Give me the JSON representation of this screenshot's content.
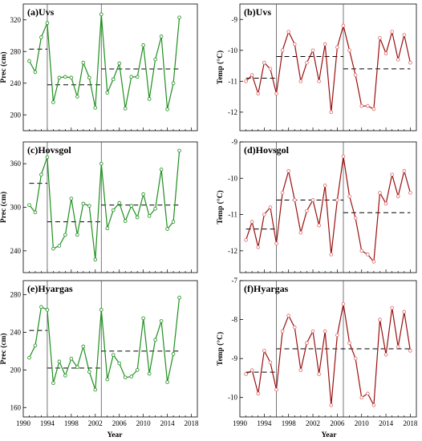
{
  "figure": {
    "xlabel_left": "Year",
    "xlabel_right": "Year"
  },
  "colors": {
    "precip": "#1f8f1f",
    "temp": "#9a0f0f",
    "temp_marker": "#e06a6a",
    "mean_line": "#000000",
    "break_line": "#555555"
  },
  "chart_data": [
    {
      "type": "line",
      "title": "(a)Uvs",
      "ylabel": "Prec (cm)",
      "xlabel": "",
      "x": [
        1991,
        1992,
        1993,
        1994,
        1995,
        1996,
        1997,
        1998,
        1999,
        2000,
        2001,
        2002,
        2003,
        2004,
        2005,
        2006,
        2007,
        2008,
        2009,
        2010,
        2011,
        2012,
        2013,
        2014,
        2015,
        2016
      ],
      "values": [
        268,
        254,
        298,
        316,
        216,
        247,
        248,
        247,
        223,
        266,
        247,
        209,
        327,
        228,
        245,
        265,
        208,
        248,
        248,
        288,
        220,
        270,
        299,
        207,
        240,
        323
      ],
      "xlim": [
        1990,
        2019
      ],
      "ylim": [
        180,
        340
      ],
      "xticks": [],
      "yticks": [
        200,
        240,
        280,
        320
      ],
      "breaks": [
        1994,
        2003
      ],
      "means": [
        {
          "from": 1991,
          "to": 1994,
          "value": 283
        },
        {
          "from": 1994,
          "to": 2003,
          "value": 238
        },
        {
          "from": 2003,
          "to": 2016,
          "value": 258
        }
      ]
    },
    {
      "type": "line",
      "title": "(b)Uvs",
      "ylabel": "Temp (°C)",
      "xlabel": "",
      "x": [
        1991,
        1992,
        1993,
        1994,
        1995,
        1996,
        1997,
        1998,
        1999,
        2000,
        2001,
        2002,
        2003,
        2004,
        2005,
        2006,
        2007,
        2008,
        2009,
        2010,
        2011,
        2012,
        2013,
        2014,
        2015,
        2016,
        2017,
        2018
      ],
      "values": [
        -11.0,
        -10.8,
        -11.4,
        -10.4,
        -10.6,
        -11.4,
        -10.0,
        -9.4,
        -9.8,
        -11.0,
        -10.4,
        -10.0,
        -11.0,
        -9.8,
        -12.0,
        -9.9,
        -9.2,
        -10.0,
        -10.8,
        -11.8,
        -11.8,
        -11.9,
        -9.6,
        -10.1,
        -9.4,
        -10.3,
        -9.5,
        -10.4
      ],
      "xlim": [
        1990,
        2019
      ],
      "ylim": [
        -12.6,
        -8.5
      ],
      "xticks": [],
      "yticks": [
        -12,
        -11,
        -10,
        -9
      ],
      "breaks": [
        1996,
        2007
      ],
      "means": [
        {
          "from": 1991,
          "to": 1996,
          "value": -10.9
        },
        {
          "from": 1996,
          "to": 2007,
          "value": -10.2
        },
        {
          "from": 2007,
          "to": 2018,
          "value": -10.6
        }
      ]
    },
    {
      "type": "line",
      "title": "(c)Hovsgol",
      "ylabel": "Prec (cm)",
      "xlabel": "",
      "x": [
        1991,
        1992,
        1993,
        1994,
        1995,
        1996,
        1997,
        1998,
        1999,
        2000,
        2001,
        2002,
        2003,
        2004,
        2005,
        2006,
        2007,
        2008,
        2009,
        2010,
        2011,
        2012,
        2013,
        2014,
        2015,
        2016
      ],
      "values": [
        303,
        293,
        345,
        369,
        243,
        247,
        262,
        312,
        262,
        305,
        302,
        228,
        360,
        271,
        296,
        306,
        281,
        302,
        286,
        318,
        288,
        298,
        352,
        270,
        280,
        378
      ],
      "xlim": [
        1990,
        2019
      ],
      "ylim": [
        210,
        390
      ],
      "xticks": [],
      "yticks": [
        240,
        300,
        360
      ],
      "breaks": [
        1994,
        2003
      ],
      "means": [
        {
          "from": 1991,
          "to": 1994,
          "value": 333
        },
        {
          "from": 1994,
          "to": 2003,
          "value": 280
        },
        {
          "from": 2003,
          "to": 2016,
          "value": 303
        }
      ]
    },
    {
      "type": "line",
      "title": "(d)Hovsgol",
      "ylabel": "Temp (°C)",
      "xlabel": "",
      "x": [
        1991,
        1992,
        1993,
        1994,
        1995,
        1996,
        1997,
        1998,
        1999,
        2000,
        2001,
        2002,
        2003,
        2004,
        2005,
        2006,
        2007,
        2008,
        2009,
        2010,
        2011,
        2012,
        2013,
        2014,
        2015,
        2016,
        2017,
        2018
      ],
      "values": [
        -11.7,
        -11.2,
        -11.9,
        -11.0,
        -10.8,
        -11.8,
        -10.4,
        -9.8,
        -10.6,
        -11.5,
        -10.9,
        -10.6,
        -11.3,
        -10.2,
        -12.1,
        -10.6,
        -9.4,
        -10.5,
        -11.1,
        -12.0,
        -12.1,
        -12.3,
        -10.4,
        -10.7,
        -9.9,
        -10.5,
        -9.8,
        -10.4
      ],
      "xlim": [
        1990,
        2019
      ],
      "ylim": [
        -12.6,
        -9.0
      ],
      "xticks": [],
      "yticks": [
        -12,
        -11,
        -10,
        -9
      ],
      "breaks": [
        1996,
        2007
      ],
      "means": [
        {
          "from": 1991,
          "to": 1996,
          "value": -11.4
        },
        {
          "from": 1996,
          "to": 2007,
          "value": -10.6
        },
        {
          "from": 2007,
          "to": 2018,
          "value": -10.95
        }
      ]
    },
    {
      "type": "line",
      "title": "(e)Hyargas",
      "ylabel": "Prec (cm)",
      "xlabel": "Year",
      "x": [
        1991,
        1992,
        1993,
        1994,
        1995,
        1996,
        1997,
        1998,
        1999,
        2000,
        2001,
        2002,
        2003,
        2004,
        2005,
        2006,
        2007,
        2008,
        2009,
        2010,
        2011,
        2012,
        2013,
        2014,
        2015,
        2016
      ],
      "values": [
        213,
        226,
        267,
        264,
        186,
        209,
        194,
        212,
        203,
        225,
        198,
        179,
        264,
        190,
        216,
        207,
        192,
        193,
        200,
        255,
        196,
        232,
        252,
        187,
        217,
        277
      ],
      "xlim": [
        1990,
        2019
      ],
      "ylim": [
        150,
        295
      ],
      "xticks": [
        1990,
        1994,
        1998,
        2002,
        2006,
        2010,
        2014,
        2018
      ],
      "yticks": [
        160,
        200,
        240,
        280
      ],
      "breaks": [
        1994,
        2003
      ],
      "means": [
        {
          "from": 1991,
          "to": 1994,
          "value": 242
        },
        {
          "from": 1994,
          "to": 2003,
          "value": 202
        },
        {
          "from": 2003,
          "to": 2016,
          "value": 220
        }
      ]
    },
    {
      "type": "line",
      "title": "(f)Hyargas",
      "ylabel": "Temp (°C)",
      "xlabel": "Year",
      "x": [
        1991,
        1992,
        1993,
        1994,
        1995,
        1996,
        1997,
        1998,
        1999,
        2000,
        2001,
        2002,
        2003,
        2004,
        2005,
        2006,
        2007,
        2008,
        2009,
        2010,
        2011,
        2012,
        2013,
        2014,
        2015,
        2016,
        2017,
        2018
      ],
      "values": [
        -9.4,
        -9.3,
        -9.9,
        -8.8,
        -9.1,
        -9.8,
        -8.3,
        -7.9,
        -8.2,
        -9.3,
        -8.6,
        -8.3,
        -9.4,
        -8.3,
        -10.2,
        -8.4,
        -7.6,
        -8.6,
        -9.0,
        -10.0,
        -9.9,
        -10.2,
        -8.0,
        -8.9,
        -7.7,
        -8.7,
        -7.8,
        -8.8
      ],
      "xlim": [
        1990,
        2019
      ],
      "ylim": [
        -10.5,
        -7.0
      ],
      "xticks": [
        1990,
        1994,
        1998,
        2002,
        2006,
        2010,
        2014,
        2018
      ],
      "yticks": [
        -10,
        -9,
        -8,
        -7
      ],
      "breaks": [
        1996,
        2007
      ],
      "means": [
        {
          "from": 1991,
          "to": 1996,
          "value": -9.35
        },
        {
          "from": 1996,
          "to": 2018,
          "value": -8.75
        }
      ]
    }
  ]
}
